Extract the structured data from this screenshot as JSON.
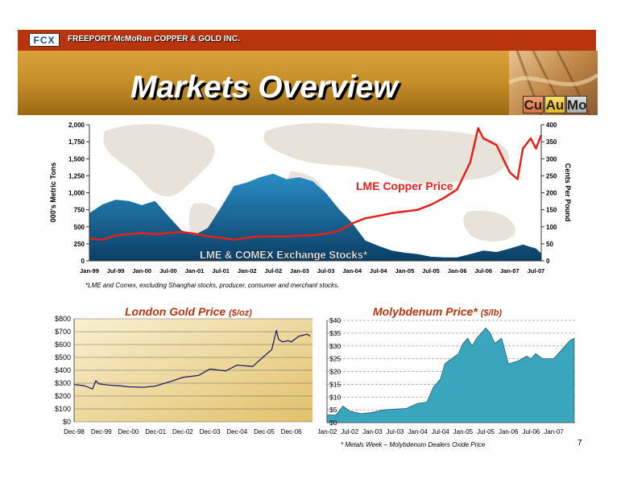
{
  "header": {
    "company": "FREEPORT-McMoRan COPPER & GOLD INC.",
    "logo_text": "FCX",
    "title": "Markets Overview",
    "tiles": [
      "Cu",
      "Au",
      "Mo"
    ],
    "page_number": "7"
  },
  "footnotes": {
    "copper": "*LME and Comex, excluding Shanghai stocks, producer, consumer and merchant stocks.",
    "moly": "*  Metals Week – Molybdenum Dealers Oxide Price"
  },
  "colors": {
    "brand_red": "#b8340d",
    "gold": "#d9a23c",
    "copper_line": "#e8201a",
    "stocks_fill": "#0e5d8e",
    "moly_fill": "#3aa6be",
    "gold_line": "#1c1f6a"
  },
  "chart_data": [
    {
      "id": "copper",
      "type": "area",
      "title": "",
      "ylabel_left": "000's Metric Tons",
      "ylabel_right": "Cents Per Pound",
      "x_ticks": [
        "Jan-99",
        "Jul-99",
        "Jan-00",
        "Jul-00",
        "Jan-01",
        "Jul-01",
        "Jan-02",
        "Jul-02",
        "Jan-03",
        "Jul-03",
        "Jan-04",
        "Jul-04",
        "Jan-05",
        "Jul-05",
        "Jan-06",
        "Jul-06",
        "Jan-07",
        "Jul-07"
      ],
      "y_left_ticks": [
        "0",
        "250",
        "500",
        "750",
        "1,000",
        "1,250",
        "1,500",
        "1,750",
        "2,000"
      ],
      "y_right_ticks": [
        "0",
        "50",
        "100",
        "150",
        "200",
        "250",
        "300",
        "350",
        "400"
      ],
      "ylim_left": [
        0,
        2000
      ],
      "ylim_right": [
        0,
        400
      ],
      "grid": false,
      "series": [
        {
          "name": "LME & COMEX Exchange Stocks*",
          "axis": "left",
          "type": "area",
          "x": [
            1999.0,
            1999.25,
            1999.5,
            1999.75,
            2000.0,
            2000.25,
            2000.5,
            2000.75,
            2001.0,
            2001.25,
            2001.5,
            2001.75,
            2002.0,
            2002.25,
            2002.5,
            2002.75,
            2003.0,
            2003.25,
            2003.5,
            2003.75,
            2004.0,
            2004.25,
            2004.5,
            2004.75,
            2005.0,
            2005.25,
            2005.5,
            2005.75,
            2006.0,
            2006.25,
            2006.5,
            2006.75,
            2007.0,
            2007.25,
            2007.5,
            2007.6
          ],
          "values": [
            700,
            830,
            900,
            880,
            820,
            880,
            660,
            450,
            380,
            480,
            780,
            1100,
            1150,
            1230,
            1280,
            1200,
            1230,
            1170,
            1000,
            760,
            560,
            300,
            220,
            150,
            120,
            100,
            60,
            50,
            50,
            100,
            150,
            130,
            180,
            240,
            180,
            110
          ]
        },
        {
          "name": "LME Copper Price",
          "axis": "right",
          "type": "line",
          "x": [
            1999.0,
            1999.25,
            1999.5,
            1999.75,
            2000.0,
            2000.25,
            2000.5,
            2000.75,
            2001.0,
            2001.25,
            2001.5,
            2001.75,
            2002.0,
            2002.25,
            2002.5,
            2002.75,
            2003.0,
            2003.25,
            2003.5,
            2003.75,
            2004.0,
            2004.25,
            2004.5,
            2004.75,
            2005.0,
            2005.25,
            2005.5,
            2005.75,
            2006.0,
            2006.25,
            2006.4,
            2006.5,
            2006.75,
            2007.0,
            2007.15,
            2007.25,
            2007.4,
            2007.5,
            2007.6
          ],
          "values": [
            65,
            62,
            75,
            78,
            82,
            78,
            82,
            85,
            80,
            72,
            68,
            62,
            68,
            72,
            72,
            72,
            74,
            75,
            80,
            88,
            110,
            125,
            132,
            140,
            145,
            150,
            165,
            185,
            210,
            290,
            390,
            360,
            340,
            260,
            240,
            330,
            360,
            330,
            370
          ]
        }
      ]
    },
    {
      "id": "gold",
      "type": "line",
      "title": "London Gold Price",
      "unit": "($/oz)",
      "x_ticks": [
        "Dec-98",
        "Dec-99",
        "Dec-00",
        "Dec-01",
        "Dec-02",
        "Dec-03",
        "Dec-04",
        "Dec-05",
        "Dec-06"
      ],
      "y_ticks": [
        "$0",
        "$100",
        "$200",
        "$300",
        "$400",
        "$500",
        "$600",
        "$700",
        "$800"
      ],
      "ylim": [
        0,
        800
      ],
      "grid": true,
      "series": [
        {
          "name": "",
          "x": [
            1998.92,
            1999.3,
            1999.6,
            1999.72,
            1999.83,
            2000.2,
            2000.6,
            2000.92,
            2001.5,
            2001.92,
            2002.5,
            2002.92,
            2003.5,
            2003.92,
            2004.5,
            2004.92,
            2005.5,
            2005.92,
            2006.2,
            2006.37,
            2006.45,
            2006.6,
            2006.8,
            2006.92,
            2007.2,
            2007.5,
            2007.62
          ],
          "values": [
            290,
            280,
            255,
            320,
            295,
            285,
            280,
            272,
            268,
            278,
            315,
            345,
            360,
            410,
            395,
            440,
            430,
            510,
            560,
            710,
            640,
            620,
            630,
            620,
            665,
            680,
            665
          ]
        }
      ]
    },
    {
      "id": "moly",
      "type": "area",
      "title": "Molybdenum Price*",
      "unit": "($/lb)",
      "x_ticks": [
        "Jan-02",
        "Jul-02",
        "Jan-03",
        "Jul-03",
        "Jan-04",
        "Jul-04",
        "Jan-05",
        "Jul-05",
        "Jan-06",
        "Jul-06",
        "Jan-07"
      ],
      "y_ticks": [
        "$0",
        "$5",
        "$10",
        "$15",
        "$20",
        "$25",
        "$30",
        "$35",
        "$40"
      ],
      "ylim": [
        0,
        40
      ],
      "grid": true,
      "series": [
        {
          "name": "",
          "x": [
            2002.0,
            2002.2,
            2002.35,
            2002.5,
            2002.75,
            2003.0,
            2003.25,
            2003.5,
            2003.75,
            2004.0,
            2004.2,
            2004.35,
            2004.5,
            2004.6,
            2004.75,
            2004.9,
            2005.0,
            2005.1,
            2005.2,
            2005.3,
            2005.4,
            2005.5,
            2005.6,
            2005.7,
            2005.85,
            2006.0,
            2006.2,
            2006.4,
            2006.5,
            2006.6,
            2006.75,
            2007.0,
            2007.2,
            2007.35,
            2007.45
          ],
          "values": [
            3,
            3,
            6.5,
            4.5,
            3.5,
            4,
            5,
            5.3,
            5.5,
            7.5,
            8,
            14,
            17,
            23,
            25,
            27,
            31,
            33,
            30,
            33,
            35,
            37,
            35,
            31,
            33,
            23,
            24,
            26,
            25,
            27,
            25,
            25,
            29,
            32,
            33
          ]
        }
      ]
    }
  ]
}
